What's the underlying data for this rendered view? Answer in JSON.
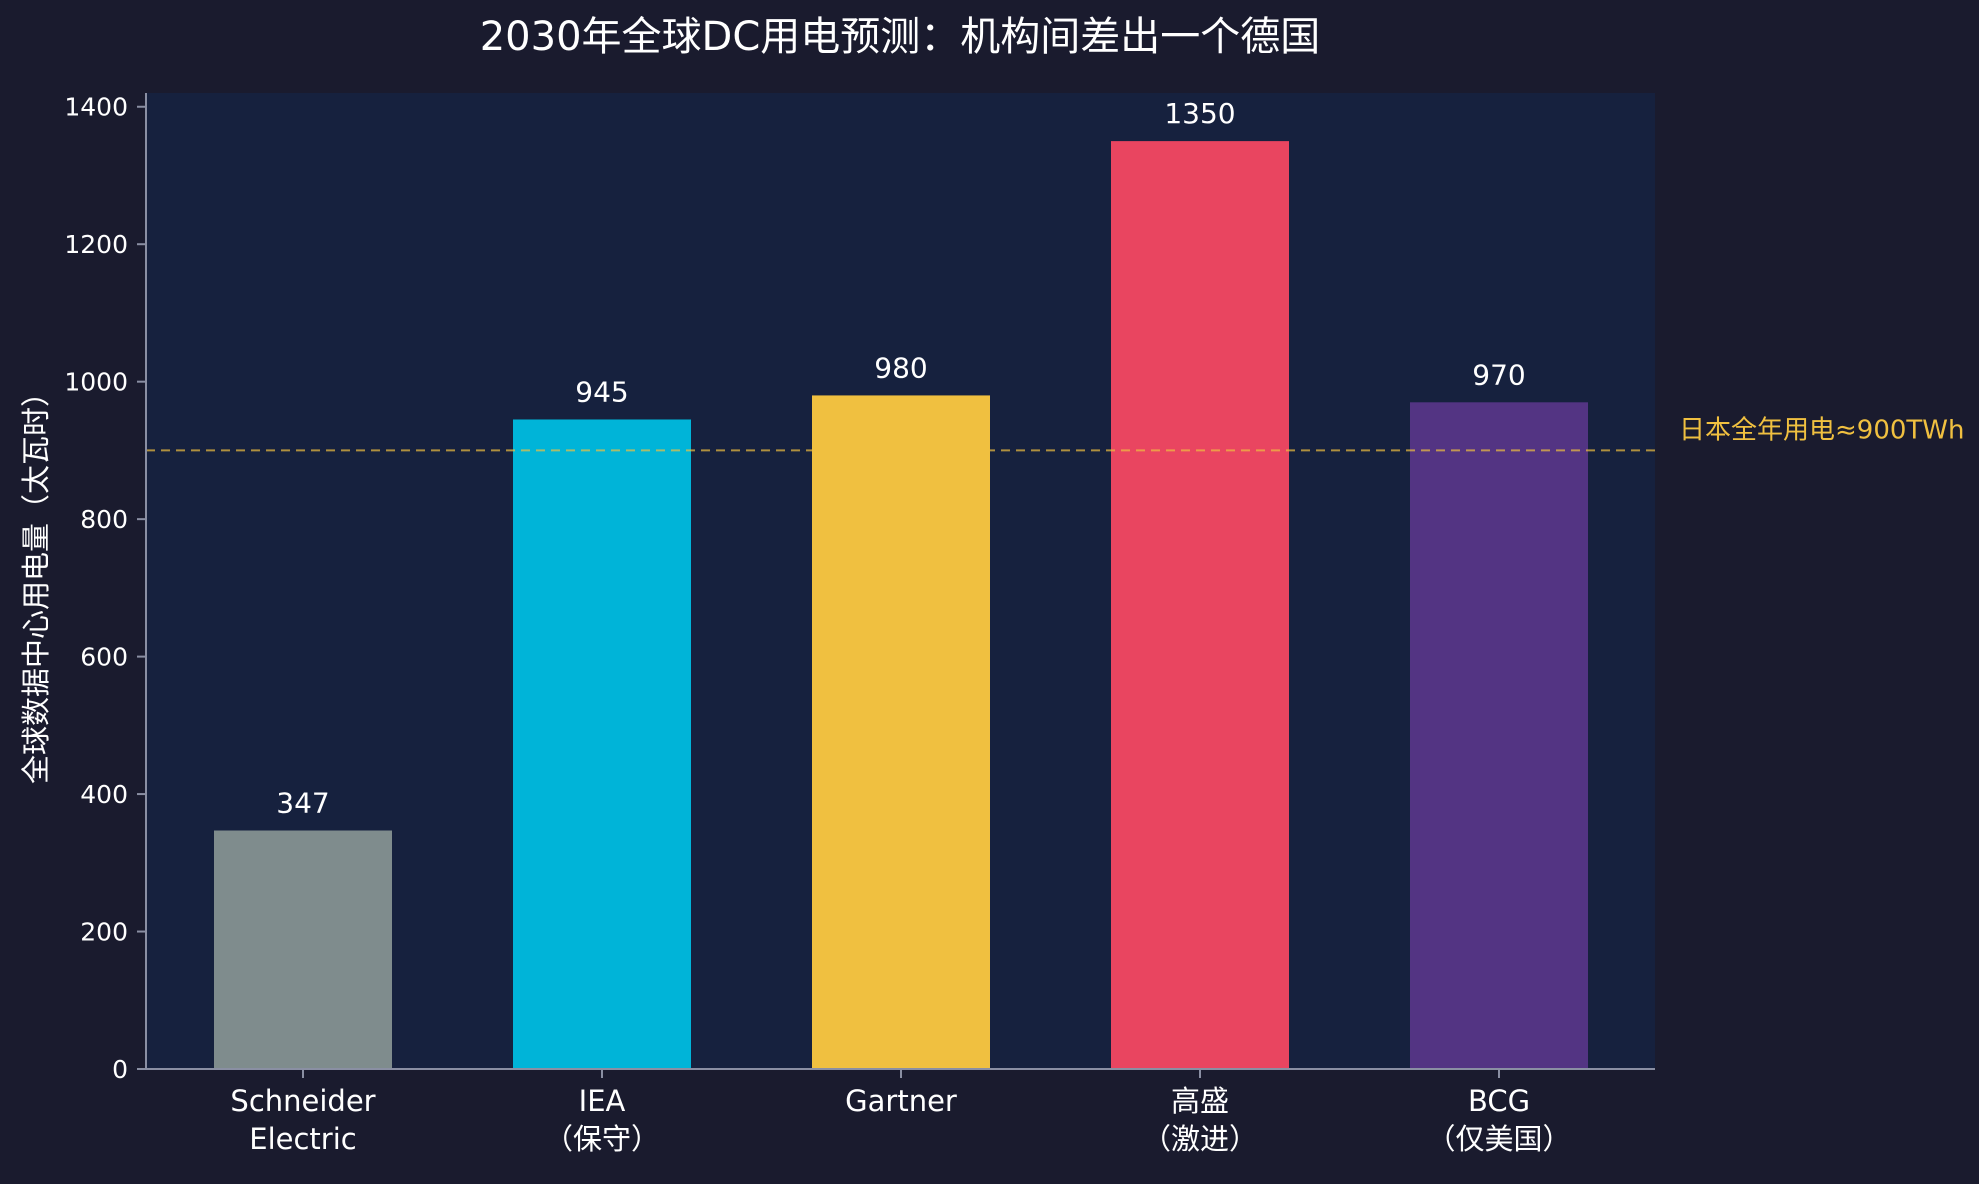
{
  "chart_data": {
    "type": "bar",
    "title": "2030年全球DC用电预测：机构间差出一个德国",
    "ylabel": "全球数据中心用电量（太瓦时）",
    "xlabel": "",
    "categories": [
      [
        "Schneider",
        "Electric"
      ],
      [
        "IEA",
        "（保守）"
      ],
      [
        "Gartner"
      ],
      [
        "高盛",
        "（激进）"
      ],
      [
        "BCG",
        "（仅美国）"
      ]
    ],
    "values": [
      347,
      945,
      980,
      1350,
      970
    ],
    "value_labels": [
      "347",
      "945",
      "980",
      "1350",
      "970"
    ],
    "bar_colors": [
      "#7f8c8d",
      "#00b4d8",
      "#f0c040",
      "#e94560",
      "#533483"
    ],
    "ylim": [
      0,
      1420
    ],
    "yticks": [
      0,
      200,
      400,
      600,
      800,
      1000,
      1200,
      1400
    ],
    "grid": false,
    "reference_line": {
      "value": 900,
      "label": "日本全年用电≈900TWh",
      "color": "#f0c040",
      "style": "dashed"
    },
    "colors": {
      "page_background": "#1a1b2e",
      "plot_background": "#16213e",
      "axis": "#8a8fa3",
      "text": "#ffffff"
    }
  }
}
